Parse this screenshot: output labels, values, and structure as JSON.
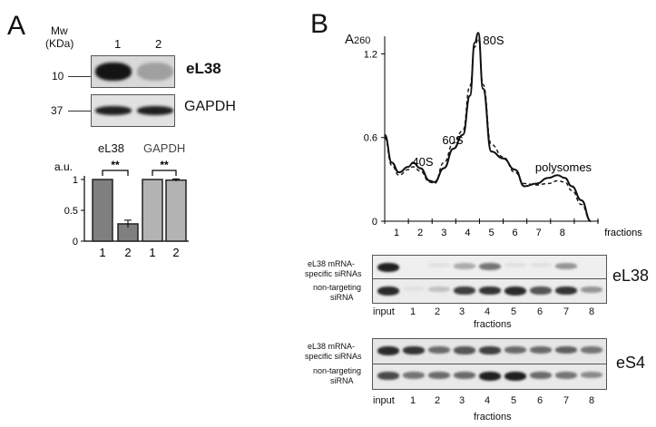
{
  "panel_a": {
    "letter": "A",
    "mw_label_1": "Mw",
    "mw_label_2": "(KDa)",
    "lane_labels": [
      "1",
      "2"
    ],
    "markers": [
      "10",
      "37"
    ],
    "blots": [
      {
        "label": "eL38",
        "band_intensity": [
          1.0,
          0.35
        ]
      },
      {
        "label": "GAPDH",
        "band_intensity": [
          0.95,
          0.95
        ]
      }
    ]
  },
  "panel_b": {
    "letter": "B",
    "ylabel": "A",
    "ylabel_sub": "260",
    "yticks": [
      "0",
      "0.6",
      "1.2"
    ],
    "xticks": [
      "1",
      "2",
      "3",
      "4",
      "5",
      "6",
      "7",
      "8"
    ],
    "xlabel": "fractions",
    "peaks": [
      "40S",
      "60S",
      "80S",
      "polysomes"
    ],
    "blot_groups": [
      {
        "protein": "eL38",
        "rows": [
          {
            "label_line1": "eL38 mRNA-",
            "label_line2": "specific siRNAs",
            "band_intensity": [
              0.95,
              0.0,
              0.05,
              0.3,
              0.55,
              0.05,
              0.05,
              0.4,
              0.0
            ]
          },
          {
            "label_line1": "non-targeting",
            "label_line2": "siRNA",
            "band_intensity": [
              0.9,
              0.05,
              0.2,
              0.8,
              0.85,
              0.9,
              0.7,
              0.85,
              0.4
            ]
          }
        ],
        "lane_labels": [
          "input",
          "1",
          "2",
          "3",
          "4",
          "5",
          "6",
          "7",
          "8"
        ],
        "lane_axis_label": "fractions"
      },
      {
        "protein": "eS4",
        "rows": [
          {
            "label_line1": "eL38 mRNA-",
            "label_line2": "specific siRNAs",
            "band_intensity": [
              0.9,
              0.85,
              0.6,
              0.7,
              0.8,
              0.6,
              0.6,
              0.65,
              0.55
            ]
          },
          {
            "label_line1": "non-targeting",
            "label_line2": "siRNA",
            "band_intensity": [
              0.75,
              0.55,
              0.6,
              0.6,
              0.95,
              0.95,
              0.6,
              0.55,
              0.45
            ]
          }
        ],
        "lane_labels": [
          "input",
          "1",
          "2",
          "3",
          "4",
          "5",
          "6",
          "7",
          "8"
        ],
        "lane_axis_label": "fractions"
      }
    ]
  },
  "chart_data": [
    {
      "type": "bar",
      "categories": [
        "1",
        "2",
        "1",
        "2"
      ],
      "groups": [
        "eL38",
        "GAPDH"
      ],
      "values": [
        1.0,
        0.28,
        1.0,
        0.99
      ],
      "errors": [
        0,
        0.06,
        0,
        0.02
      ],
      "significance": [
        "**",
        "**"
      ],
      "ylabel": "a.u.",
      "yticks": [
        "0",
        "0.5",
        "1"
      ],
      "ylim": [
        0,
        1.0
      ],
      "colors": [
        "#7f7f7f",
        "#7f7f7f",
        "#b3b3b3",
        "#b3b3b3"
      ]
    },
    {
      "type": "line",
      "xlabel": "fractions",
      "ylabel": "A260",
      "ylim": [
        0,
        1.3
      ],
      "xlim": [
        0,
        9
      ],
      "annotations": [
        "40S",
        "60S",
        "80S",
        "polysomes"
      ],
      "series": [
        {
          "style": "solid",
          "x": [
            0,
            0.3,
            0.6,
            1.0,
            1.2,
            1.5,
            1.9,
            2.1,
            2.5,
            2.9,
            3.3,
            3.6,
            3.8,
            3.95,
            4.15,
            4.5,
            5.0,
            5.5,
            5.9,
            6.4,
            6.9,
            7.3,
            7.6,
            7.9,
            8.3,
            8.7
          ],
          "y": [
            0.62,
            0.42,
            0.35,
            0.39,
            0.42,
            0.38,
            0.29,
            0.28,
            0.38,
            0.52,
            0.62,
            0.9,
            1.28,
            1.35,
            0.95,
            0.5,
            0.45,
            0.37,
            0.25,
            0.27,
            0.31,
            0.33,
            0.31,
            0.25,
            0.15,
            0.0
          ]
        },
        {
          "style": "dashed",
          "x": [
            0,
            0.3,
            0.6,
            1.0,
            1.2,
            1.5,
            1.9,
            2.1,
            2.5,
            2.9,
            3.3,
            3.6,
            3.8,
            3.95,
            4.15,
            4.5,
            5.0,
            5.5,
            5.9,
            6.4,
            6.9,
            7.3,
            7.6,
            7.9,
            8.3,
            8.7
          ],
          "y": [
            0.6,
            0.4,
            0.33,
            0.37,
            0.39,
            0.36,
            0.28,
            0.27,
            0.42,
            0.56,
            0.65,
            0.97,
            1.25,
            1.31,
            0.98,
            0.55,
            0.46,
            0.35,
            0.27,
            0.26,
            0.27,
            0.29,
            0.28,
            0.22,
            0.12,
            0.0
          ]
        }
      ]
    }
  ]
}
